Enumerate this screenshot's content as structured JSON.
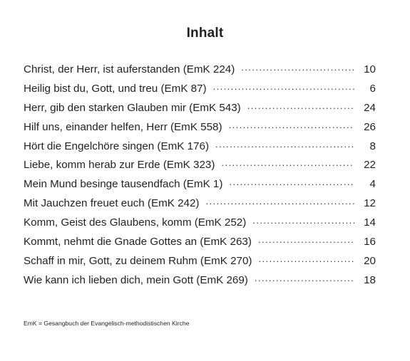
{
  "title": "Inhalt",
  "entries": [
    {
      "title": "Christ, der Herr, ist auferstanden (EmK 224)",
      "page": "10"
    },
    {
      "title": "Heilig bist du, Gott, und treu (EmK 87)",
      "page": "6"
    },
    {
      "title": "Herr, gib den starken Glauben mir (EmK 543)",
      "page": "24"
    },
    {
      "title": "Hilf uns, einander helfen, Herr (EmK 558)",
      "page": "26"
    },
    {
      "title": "Hört die Engelchöre singen (EmK 176)",
      "page": "8"
    },
    {
      "title": "Liebe, komm herab zur Erde (EmK 323)",
      "page": "22"
    },
    {
      "title": "Mein Mund besinge tausendfach (EmK 1)",
      "page": "4"
    },
    {
      "title": "Mit Jauchzen freuet euch (EmK 242)",
      "page": "12"
    },
    {
      "title": "Komm, Geist des Glaubens, komm (EmK 252)",
      "page": "14"
    },
    {
      "title": "Kommt, nehmt die Gnade Gottes an (EmK 263)",
      "page": "16"
    },
    {
      "title": "Schaff in mir, Gott, zu deinem Ruhm (EmK 270)",
      "page": "20"
    },
    {
      "title": "Wie kann ich lieben dich, mein Gott (EmK 269)",
      "page": "18"
    }
  ],
  "footnote": "EmK = Gesangbuch der Evangelisch-methodistischen Kirche"
}
